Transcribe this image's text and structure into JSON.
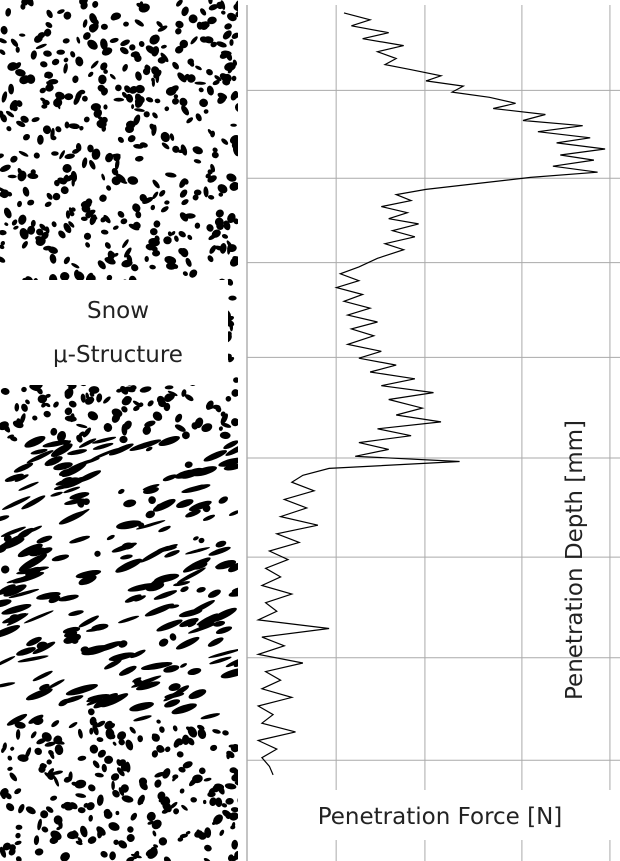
{
  "chart_data": {
    "type": "line",
    "annotations": [
      "Snow",
      "μ-Structure"
    ],
    "x_label": "Penetration Force [N]",
    "y_label": "Penetration Depth [mm]",
    "xlim": [
      0,
      100
    ],
    "ylim": [
      0,
      100
    ],
    "xgrid": [
      23.9,
      47.7,
      73.7,
      97.3
    ],
    "ygrid": [
      10.5,
      20.7,
      30.5,
      41.5,
      53.2,
      64.7,
      76.4,
      88.3
    ],
    "color": "#000000",
    "depth": [
      1.5,
      2.3,
      3.0,
      3.8,
      4.5,
      5.3,
      6.0,
      6.8,
      7.5,
      8.1,
      8.8,
      9.4,
      10.0,
      10.7,
      11.3,
      12.0,
      12.6,
      13.3,
      14.0,
      14.6,
      15.3,
      16.0,
      16.6,
      17.3,
      18.0,
      18.6,
      19.3,
      20.0,
      20.6,
      21.3,
      22.0,
      22.6,
      23.3,
      24.0,
      24.7,
      25.4,
      26.0,
      26.8,
      27.5,
      28.3,
      29.0,
      30.0,
      31.0,
      31.8,
      32.6,
      33.4,
      34.2,
      35.0,
      35.8,
      36.6,
      37.4,
      38.2,
      39.0,
      40.0,
      40.8,
      41.6,
      42.4,
      43.2,
      44.0,
      44.8,
      45.6,
      46.4,
      47.4,
      48.2,
      49.0,
      49.8,
      50.6,
      51.4,
      52.2,
      53.0,
      53.6,
      54.4,
      55.2,
      56.0,
      57.0,
      58.0,
      59.0,
      60.0,
      61.0,
      62.0,
      63.0,
      64.0,
      65.0,
      66.0,
      67.0,
      68.0,
      69.0,
      70.0,
      71.0,
      72.0,
      73.0,
      74.0,
      75.0,
      76.0,
      77.0,
      78.0,
      79.0,
      80.0,
      81.0,
      82.0,
      83.0,
      84.0,
      85.0,
      86.0,
      87.0,
      88.0,
      89.0,
      90.0
    ],
    "values": [
      26,
      33,
      28,
      38,
      31,
      42,
      35,
      40,
      37,
      44,
      52,
      48,
      58,
      55,
      65,
      72,
      66,
      80,
      74,
      90,
      78,
      92,
      83,
      96,
      84,
      93,
      82,
      94,
      76,
      62,
      48,
      40,
      44,
      36,
      43,
      38,
      46,
      39,
      45,
      37,
      42,
      35,
      30,
      25,
      30,
      24,
      31,
      26,
      33,
      27,
      35,
      28,
      34,
      27,
      36,
      30,
      40,
      33,
      45,
      36,
      50,
      38,
      47,
      40,
      52,
      35,
      44,
      30,
      38,
      29,
      57,
      22,
      15,
      12,
      18,
      10,
      16,
      9,
      19,
      8,
      14,
      6,
      11,
      5,
      9,
      4,
      12,
      5,
      8,
      3,
      22,
      4,
      10,
      3,
      15,
      5,
      9,
      4,
      12,
      3,
      7,
      4,
      13,
      3,
      8,
      4,
      6,
      7
    ]
  }
}
